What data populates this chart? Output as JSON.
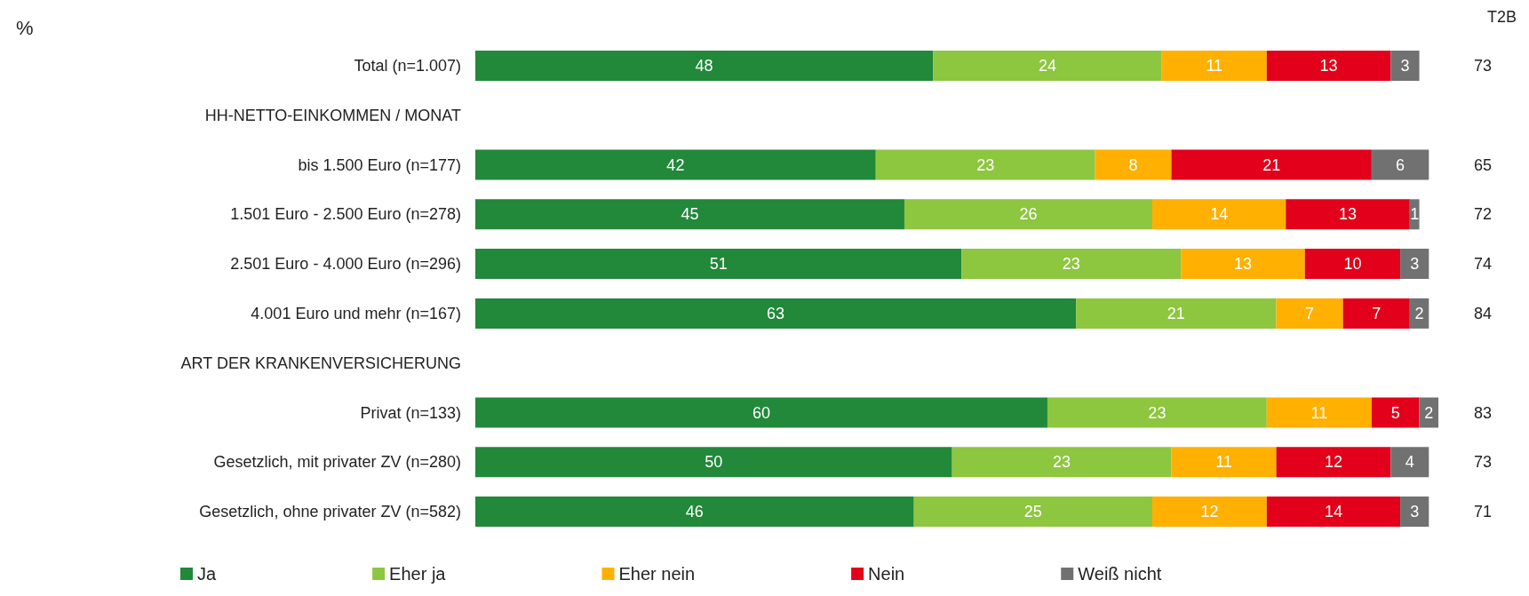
{
  "chart_data": {
    "type": "bar",
    "orientation": "horizontal",
    "stacked": true,
    "data_labels": true,
    "legend": "bottom",
    "categories": [
      "Total (n=1.007)",
      "HH-NETTO-EINKOMMEN / MONAT",
      "bis 1.500 Euro (n=177)",
      "1.501 Euro - 2.500 Euro (n=278)",
      "2.501 Euro - 4.000 Euro (n=296)",
      "4.001 Euro und mehr (n=167)",
      "ART DER KRANKENVERSICHERUNG",
      "Privat (n=133)",
      "Gesetzlich, mit privater ZV (n=280)",
      "Gesetzlich, ohne privater ZV (n=582)"
    ],
    "series": [
      {
        "name": "Ja",
        "color": "#22883a",
        "values": [
          48,
          null,
          42,
          45,
          51,
          63,
          null,
          60,
          50,
          46
        ]
      },
      {
        "name": "Eher ja",
        "color": "#8dc63f",
        "values": [
          24,
          null,
          23,
          26,
          23,
          21,
          null,
          23,
          23,
          25
        ]
      },
      {
        "name": "Eher nein",
        "color": "#ffb000",
        "values": [
          11,
          null,
          8,
          14,
          13,
          7,
          null,
          11,
          11,
          12
        ]
      },
      {
        "name": "Nein",
        "color": "#e2001a",
        "values": [
          13,
          null,
          21,
          13,
          10,
          7,
          null,
          5,
          12,
          14
        ]
      },
      {
        "name": "Weiß nicht",
        "color": "#717171",
        "values": [
          3,
          null,
          6,
          1,
          3,
          2,
          null,
          2,
          4,
          3
        ]
      }
    ],
    "annotations": [
      "%",
      "T2B",
      "73",
      "65",
      "72",
      "74",
      "84",
      "83",
      "73",
      "71"
    ]
  }
}
